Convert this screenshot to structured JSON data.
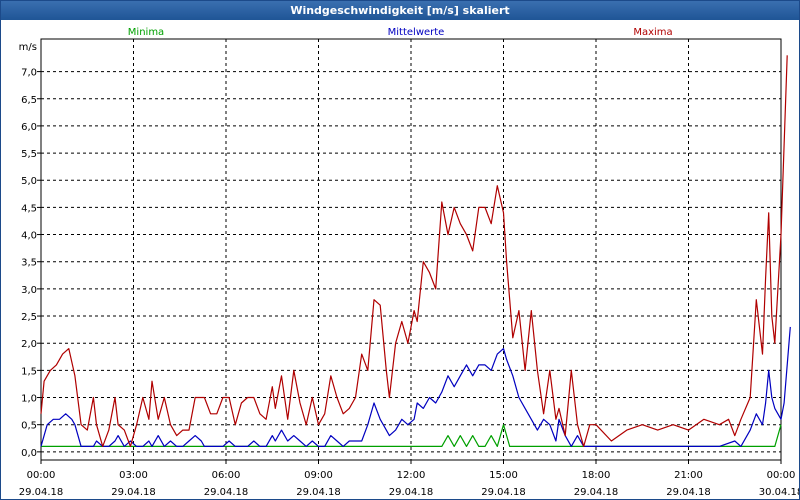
{
  "window": {
    "title": "Windgeschwindigkeit [m/s] skaliert"
  },
  "chart_data": {
    "type": "line",
    "ylabel": "m/s",
    "ylim": [
      -0.15,
      7.6
    ],
    "yticks": [
      "0,0",
      "0,5",
      "1,0",
      "1,5",
      "2,0",
      "2,5",
      "3,0",
      "3,5",
      "4,0",
      "4,5",
      "5,0",
      "5,5",
      "6,0",
      "6,5",
      "7,0"
    ],
    "xticks": [
      {
        "time": "00:00",
        "date": "29.04.18"
      },
      {
        "time": "03:00",
        "date": "29.04.18"
      },
      {
        "time": "06:00",
        "date": "29.04.18"
      },
      {
        "time": "09:00",
        "date": "29.04.18"
      },
      {
        "time": "12:00",
        "date": "29.04.18"
      },
      {
        "time": "15:00",
        "date": "29.04.18"
      },
      {
        "time": "18:00",
        "date": "29.04.18"
      },
      {
        "time": "21:00",
        "date": "29.04.18"
      },
      {
        "time": "00:00",
        "date": "30.04.18"
      }
    ],
    "xlim_hours": [
      0,
      24
    ],
    "grid": true,
    "series": [
      {
        "name": "Minima",
        "color": "#00a000",
        "legend_position": "top-left",
        "points": [
          [
            0,
            0.1
          ],
          [
            13,
            0.1
          ],
          [
            13.2,
            0.3
          ],
          [
            13.4,
            0.1
          ],
          [
            13.6,
            0.3
          ],
          [
            13.8,
            0.1
          ],
          [
            14,
            0.3
          ],
          [
            14.2,
            0.1
          ],
          [
            14.4,
            0.1
          ],
          [
            14.6,
            0.3
          ],
          [
            14.8,
            0.1
          ],
          [
            15.0,
            0.5
          ],
          [
            15.2,
            0.1
          ],
          [
            23.8,
            0.1
          ],
          [
            24,
            0.5
          ]
        ]
      },
      {
        "name": "Mittelwerte",
        "color": "#0000c0",
        "legend_position": "top-center",
        "points": [
          [
            0,
            0.1
          ],
          [
            0.2,
            0.5
          ],
          [
            0.4,
            0.6
          ],
          [
            0.6,
            0.6
          ],
          [
            0.8,
            0.7
          ],
          [
            1.0,
            0.6
          ],
          [
            1.1,
            0.5
          ],
          [
            1.3,
            0.1
          ],
          [
            1.5,
            0.1
          ],
          [
            1.7,
            0.1
          ],
          [
            1.8,
            0.2
          ],
          [
            2.0,
            0.1
          ],
          [
            2.2,
            0.1
          ],
          [
            2.4,
            0.2
          ],
          [
            2.5,
            0.3
          ],
          [
            2.7,
            0.1
          ],
          [
            2.9,
            0.2
          ],
          [
            3.1,
            0.1
          ],
          [
            3.3,
            0.1
          ],
          [
            3.5,
            0.2
          ],
          [
            3.6,
            0.1
          ],
          [
            3.8,
            0.3
          ],
          [
            4.0,
            0.1
          ],
          [
            4.2,
            0.2
          ],
          [
            4.4,
            0.1
          ],
          [
            4.6,
            0.1
          ],
          [
            4.8,
            0.2
          ],
          [
            5.0,
            0.3
          ],
          [
            5.2,
            0.2
          ],
          [
            5.3,
            0.1
          ],
          [
            5.5,
            0.1
          ],
          [
            5.7,
            0.1
          ],
          [
            5.9,
            0.1
          ],
          [
            6.1,
            0.2
          ],
          [
            6.3,
            0.1
          ],
          [
            6.5,
            0.1
          ],
          [
            6.7,
            0.1
          ],
          [
            6.9,
            0.2
          ],
          [
            7.1,
            0.1
          ],
          [
            7.3,
            0.1
          ],
          [
            7.5,
            0.3
          ],
          [
            7.6,
            0.2
          ],
          [
            7.8,
            0.4
          ],
          [
            8.0,
            0.2
          ],
          [
            8.2,
            0.3
          ],
          [
            8.4,
            0.2
          ],
          [
            8.6,
            0.1
          ],
          [
            8.8,
            0.2
          ],
          [
            9.0,
            0.1
          ],
          [
            9.2,
            0.1
          ],
          [
            9.4,
            0.3
          ],
          [
            9.6,
            0.2
          ],
          [
            9.8,
            0.1
          ],
          [
            10.0,
            0.2
          ],
          [
            10.2,
            0.2
          ],
          [
            10.4,
            0.2
          ],
          [
            10.6,
            0.5
          ],
          [
            10.8,
            0.9
          ],
          [
            11.0,
            0.6
          ],
          [
            11.2,
            0.4
          ],
          [
            11.3,
            0.3
          ],
          [
            11.5,
            0.4
          ],
          [
            11.7,
            0.6
          ],
          [
            11.9,
            0.5
          ],
          [
            12.1,
            0.6
          ],
          [
            12.2,
            0.9
          ],
          [
            12.4,
            0.8
          ],
          [
            12.6,
            1.0
          ],
          [
            12.8,
            0.9
          ],
          [
            13.0,
            1.1
          ],
          [
            13.2,
            1.4
          ],
          [
            13.4,
            1.2
          ],
          [
            13.6,
            1.4
          ],
          [
            13.8,
            1.6
          ],
          [
            14.0,
            1.4
          ],
          [
            14.2,
            1.6
          ],
          [
            14.4,
            1.6
          ],
          [
            14.6,
            1.5
          ],
          [
            14.8,
            1.8
          ],
          [
            15.0,
            1.9
          ],
          [
            15.1,
            1.7
          ],
          [
            15.3,
            1.4
          ],
          [
            15.5,
            1.0
          ],
          [
            15.7,
            0.8
          ],
          [
            15.9,
            0.6
          ],
          [
            16.1,
            0.4
          ],
          [
            16.3,
            0.6
          ],
          [
            16.5,
            0.5
          ],
          [
            16.7,
            0.2
          ],
          [
            16.8,
            0.6
          ],
          [
            17.0,
            0.3
          ],
          [
            17.2,
            0.1
          ],
          [
            17.4,
            0.3
          ],
          [
            17.6,
            0.1
          ],
          [
            17.8,
            0.1
          ],
          [
            18.0,
            0.1
          ],
          [
            19.0,
            0.1
          ],
          [
            20.0,
            0.1
          ],
          [
            21.0,
            0.1
          ],
          [
            22.0,
            0.1
          ],
          [
            22.5,
            0.2
          ],
          [
            22.7,
            0.1
          ],
          [
            23.0,
            0.4
          ],
          [
            23.2,
            0.7
          ],
          [
            23.4,
            0.5
          ],
          [
            23.5,
            0.9
          ],
          [
            23.6,
            1.5
          ],
          [
            23.7,
            1.0
          ],
          [
            23.8,
            0.8
          ],
          [
            24.0,
            0.6
          ],
          [
            24.1,
            0.9
          ],
          [
            24.3,
            2.3
          ]
        ]
      },
      {
        "name": "Maxima",
        "color": "#b00000",
        "legend_position": "top-right",
        "points": [
          [
            0,
            0.7
          ],
          [
            0.1,
            1.3
          ],
          [
            0.3,
            1.5
          ],
          [
            0.5,
            1.6
          ],
          [
            0.7,
            1.8
          ],
          [
            0.9,
            1.9
          ],
          [
            1.1,
            1.4
          ],
          [
            1.3,
            0.5
          ],
          [
            1.5,
            0.4
          ],
          [
            1.7,
            1.0
          ],
          [
            1.8,
            0.5
          ],
          [
            2.0,
            0.1
          ],
          [
            2.2,
            0.4
          ],
          [
            2.4,
            1.0
          ],
          [
            2.5,
            0.5
          ],
          [
            2.7,
            0.4
          ],
          [
            2.9,
            0.1
          ],
          [
            3.1,
            0.5
          ],
          [
            3.3,
            1.0
          ],
          [
            3.5,
            0.6
          ],
          [
            3.6,
            1.3
          ],
          [
            3.8,
            0.6
          ],
          [
            4.0,
            1.0
          ],
          [
            4.2,
            0.5
          ],
          [
            4.4,
            0.3
          ],
          [
            4.6,
            0.4
          ],
          [
            4.8,
            0.4
          ],
          [
            5.0,
            1.0
          ],
          [
            5.2,
            1.0
          ],
          [
            5.3,
            1.0
          ],
          [
            5.5,
            0.7
          ],
          [
            5.7,
            0.7
          ],
          [
            5.9,
            1.0
          ],
          [
            6.1,
            1.0
          ],
          [
            6.3,
            0.5
          ],
          [
            6.5,
            0.9
          ],
          [
            6.7,
            1.0
          ],
          [
            6.9,
            1.0
          ],
          [
            7.1,
            0.7
          ],
          [
            7.3,
            0.6
          ],
          [
            7.5,
            1.2
          ],
          [
            7.6,
            0.8
          ],
          [
            7.8,
            1.4
          ],
          [
            8.0,
            0.6
          ],
          [
            8.2,
            1.5
          ],
          [
            8.4,
            0.9
          ],
          [
            8.6,
            0.5
          ],
          [
            8.8,
            1.0
          ],
          [
            9.0,
            0.5
          ],
          [
            9.2,
            0.7
          ],
          [
            9.4,
            1.4
          ],
          [
            9.6,
            1.0
          ],
          [
            9.8,
            0.7
          ],
          [
            10.0,
            0.8
          ],
          [
            10.2,
            1.0
          ],
          [
            10.4,
            1.8
          ],
          [
            10.6,
            1.5
          ],
          [
            10.8,
            2.8
          ],
          [
            11.0,
            2.7
          ],
          [
            11.2,
            1.5
          ],
          [
            11.3,
            1.0
          ],
          [
            11.5,
            2.0
          ],
          [
            11.7,
            2.4
          ],
          [
            11.9,
            2.0
          ],
          [
            12.1,
            2.6
          ],
          [
            12.2,
            2.4
          ],
          [
            12.4,
            3.5
          ],
          [
            12.6,
            3.3
          ],
          [
            12.8,
            3.0
          ],
          [
            13.0,
            4.6
          ],
          [
            13.2,
            4.0
          ],
          [
            13.4,
            4.5
          ],
          [
            13.6,
            4.2
          ],
          [
            13.8,
            4.0
          ],
          [
            14.0,
            3.7
          ],
          [
            14.2,
            4.5
          ],
          [
            14.4,
            4.5
          ],
          [
            14.6,
            4.2
          ],
          [
            14.8,
            4.9
          ],
          [
            15.0,
            4.4
          ],
          [
            15.1,
            3.5
          ],
          [
            15.3,
            2.1
          ],
          [
            15.5,
            2.6
          ],
          [
            15.7,
            1.5
          ],
          [
            15.9,
            2.6
          ],
          [
            16.1,
            1.5
          ],
          [
            16.3,
            0.7
          ],
          [
            16.5,
            1.5
          ],
          [
            16.7,
            0.6
          ],
          [
            16.8,
            0.8
          ],
          [
            17.0,
            0.3
          ],
          [
            17.2,
            1.5
          ],
          [
            17.4,
            0.5
          ],
          [
            17.6,
            0.1
          ],
          [
            17.8,
            0.5
          ],
          [
            18.0,
            0.5
          ],
          [
            18.5,
            0.2
          ],
          [
            19.0,
            0.4
          ],
          [
            19.5,
            0.5
          ],
          [
            20.0,
            0.4
          ],
          [
            20.5,
            0.5
          ],
          [
            21.0,
            0.4
          ],
          [
            21.5,
            0.6
          ],
          [
            22.0,
            0.5
          ],
          [
            22.3,
            0.6
          ],
          [
            22.5,
            0.3
          ],
          [
            22.7,
            0.6
          ],
          [
            23.0,
            1.0
          ],
          [
            23.2,
            2.8
          ],
          [
            23.4,
            1.8
          ],
          [
            23.5,
            3.2
          ],
          [
            23.6,
            4.4
          ],
          [
            23.7,
            2.5
          ],
          [
            23.8,
            2.0
          ],
          [
            24.0,
            4.0
          ],
          [
            24.2,
            7.3
          ]
        ]
      }
    ]
  }
}
